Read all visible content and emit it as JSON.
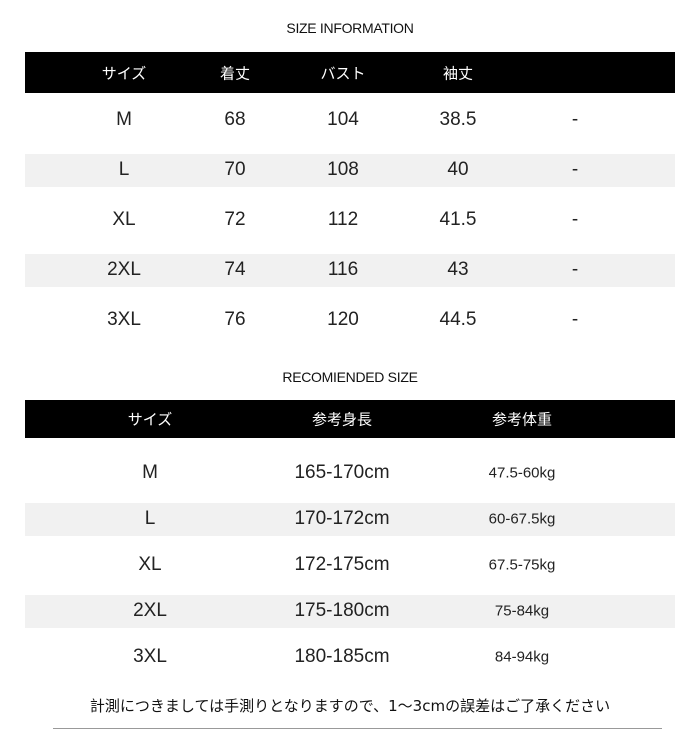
{
  "size_info": {
    "title": "SIZE INFORMATION",
    "headers": [
      "サイズ",
      "着丈",
      "バスト",
      "袖丈",
      ""
    ],
    "rows": [
      [
        "M",
        "68",
        "104",
        "38.5",
        "-"
      ],
      [
        "L",
        "70",
        "108",
        "40",
        "-"
      ],
      [
        "XL",
        "72",
        "112",
        "41.5",
        "-"
      ],
      [
        "2XL",
        "74",
        "116",
        "43",
        "-"
      ],
      [
        "3XL",
        "76",
        "120",
        "44.5",
        "-"
      ]
    ]
  },
  "recommended": {
    "title": "RECOMIENDED SIZE",
    "headers": [
      "サイズ",
      "参考身長",
      "参考体重"
    ],
    "rows": [
      [
        "M",
        "165-170cm",
        "47.5-60kg"
      ],
      [
        "L",
        "170-172cm",
        "60-67.5kg"
      ],
      [
        "XL",
        "172-175cm",
        "67.5-75kg"
      ],
      [
        "2XL",
        "175-180cm",
        "75-84kg"
      ],
      [
        "3XL",
        "180-185cm",
        "84-94kg"
      ]
    ]
  },
  "note": "計測につきましては手測りとなりますので、1～3cmの誤差はご了承ください",
  "colors": {
    "header_bg": "#000000",
    "band_bg": "#f1f1f1"
  }
}
